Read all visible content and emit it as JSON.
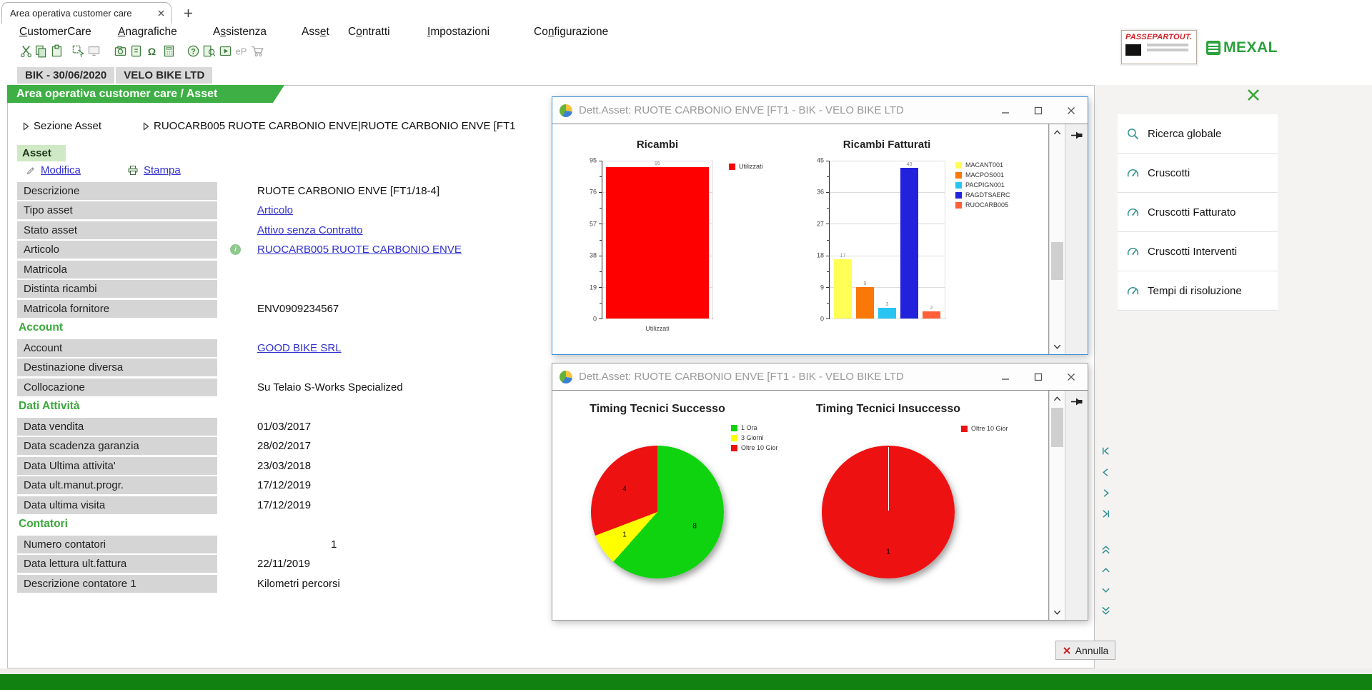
{
  "tab_bar": {
    "active_tab": "Area operativa customer care"
  },
  "menu": {
    "items": [
      {
        "pre": "",
        "key": "C",
        "post": "ustomerCare"
      },
      {
        "pre": "",
        "key": "A",
        "post": "nagrafiche"
      },
      {
        "pre": "A",
        "key": "s",
        "post": "sistenza"
      },
      {
        "pre": "Ass",
        "key": "e",
        "post": "t"
      },
      {
        "pre": "C",
        "key": "o",
        "post": "ntratti"
      },
      {
        "pre": "",
        "key": "I",
        "post": "mpostazioni"
      },
      {
        "pre": "Co",
        "key": "n",
        "post": "figurazione"
      }
    ]
  },
  "toolbar": {
    "icons": [
      "cut",
      "copy",
      "paste",
      "select",
      "monitor",
      "camera",
      "notes",
      "omega",
      "calculator",
      "help",
      "browse",
      "video",
      "epayment",
      "cart"
    ],
    "omega_label": "Ω",
    "ep_label": "eP",
    "help_label": "?"
  },
  "company_bar": {
    "terminal_date": "BIK - 30/06/2020",
    "company": "VELO BIKE LTD"
  },
  "page": {
    "banner": "Area operativa customer care / Asset",
    "breadcrumb_section": "Sezione Asset",
    "breadcrumb_asset": "RUOCARB005 RUOTE CARBONIO ENVE|RUOTE CARBONIO ENVE [FT1",
    "asset_tab": "Asset",
    "modifica": "Modifica",
    "stampa": "Stampa",
    "info_glyph": "i"
  },
  "fields": {
    "rows": [
      {
        "type": "field",
        "label": "Descrizione",
        "value": "RUOTE CARBONIO ENVE [FT1/18-4]"
      },
      {
        "type": "field",
        "label": "Tipo asset",
        "value": "Articolo"
      },
      {
        "type": "field",
        "label": "Stato asset",
        "value": "Attivo senza Contratto"
      },
      {
        "type": "field",
        "label": "Articolo",
        "value": "RUOCARB005 RUOTE CARBONIO ENVE"
      },
      {
        "type": "field",
        "label": "Matricola",
        "value": ""
      },
      {
        "type": "field",
        "label": "Distinta ricambi",
        "value": ""
      },
      {
        "type": "field",
        "label": "Matricola fornitore",
        "value": "ENV0909234567"
      },
      {
        "type": "section",
        "label": "Account"
      },
      {
        "type": "field",
        "label": "Account",
        "value": "GOOD BIKE SRL "
      },
      {
        "type": "field",
        "label": "Destinazione diversa",
        "value": ""
      },
      {
        "type": "field",
        "label": "Collocazione",
        "value": "Su Telaio S-Works Specialized"
      },
      {
        "type": "section",
        "label": "Dati Attività"
      },
      {
        "type": "field",
        "label": "Data vendita",
        "value": "01/03/2017"
      },
      {
        "type": "field",
        "label": "Data scadenza garanzia",
        "value": "28/02/2017"
      },
      {
        "type": "field",
        "label": "Data Ultima attivita'",
        "value": "23/03/2018"
      },
      {
        "type": "field",
        "label": "Data ult.manut.progr.",
        "value": "17/12/2019"
      },
      {
        "type": "field",
        "label": "Data ultima visita",
        "value": "17/12/2019"
      },
      {
        "type": "section",
        "label": "Contatori"
      },
      {
        "type": "field",
        "label": "Numero contatori",
        "value": "1"
      },
      {
        "type": "field",
        "label": "Data lettura ult.fattura",
        "value": "22/11/2019"
      },
      {
        "type": "field",
        "label": "Descrizione contatore 1",
        "value": "Kilometri percorsi"
      }
    ]
  },
  "detail_window": {
    "title": "Dett.Asset: RUOTE CARBONIO ENVE [FT1 - BIK - VELO BIKE LTD"
  },
  "sidebar": {
    "items": [
      "Ricerca globale",
      "Cruscotti",
      "Cruscotti Fatturato",
      "Cruscotti Interventi",
      "Tempi di risoluzione"
    ]
  },
  "footer": {
    "annulla": "Annulla"
  },
  "logos": {
    "passepartout": "PASSEPARTOUT.",
    "mexal": "MEXAL"
  },
  "chart_data": [
    {
      "type": "bar",
      "title": "Ricambi",
      "categories": [
        "Utilizzati"
      ],
      "values": [
        95
      ],
      "colors": [
        "#ff0000"
      ],
      "legend": [
        {
          "label": "Utilizzati",
          "color": "#ff0000"
        }
      ],
      "ylim": [
        0,
        95
      ],
      "yticks": [
        95,
        76,
        57,
        38,
        19,
        0
      ],
      "xlabel": "Utilizzati",
      "grid": true,
      "legend_position": "right"
    },
    {
      "type": "bar",
      "title": "Ricambi Fatturati",
      "categories": [
        "MACANT001",
        "MACPOS001",
        "PACPIGN001",
        "RAGDTSAERC",
        "RUOCARB005"
      ],
      "values": [
        17,
        9,
        3,
        43,
        2
      ],
      "colors": [
        "#ffff55",
        "#f97808",
        "#29c5f2",
        "#2222dd",
        "#ff6038"
      ],
      "legend": [
        {
          "label": "MACANT001",
          "color": "#ffff55"
        },
        {
          "label": "MACPOS001",
          "color": "#f97808"
        },
        {
          "label": "PACPIGN001",
          "color": "#29c5f2"
        },
        {
          "label": "RAGDTSAERC",
          "color": "#2222dd"
        },
        {
          "label": "RUOCARB005",
          "color": "#ff6038"
        }
      ],
      "ylim": [
        0,
        45
      ],
      "yticks": [
        45,
        36,
        27,
        18,
        9,
        0
      ],
      "xlabel": "",
      "grid": true,
      "legend_position": "right"
    },
    {
      "type": "pie",
      "title": "Timing Tecnici Successo",
      "slices": [
        {
          "label": "1 Ora",
          "value": 8,
          "color": "#0ed30e"
        },
        {
          "label": "3 Giorni",
          "value": 1,
          "color": "#ffff00"
        },
        {
          "label": "Oltre 10 Gior",
          "value": 4,
          "color": "#ee1111"
        }
      ],
      "legend_position": "right"
    },
    {
      "type": "pie",
      "title": "Timing Tecnici Insuccesso",
      "slices": [
        {
          "label": "Oltre 10 Gior",
          "value": 1,
          "color": "#ee1111"
        }
      ],
      "legend_position": "right"
    }
  ]
}
